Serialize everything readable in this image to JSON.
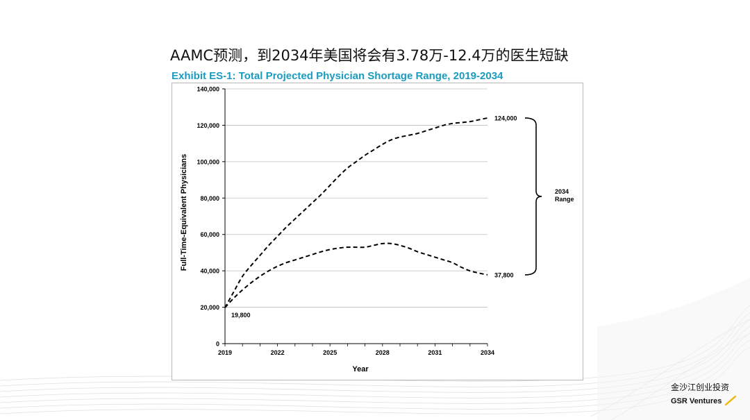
{
  "slide": {
    "title": "AAMC预测，到2034年美国将会有3.78万-12.4万的医生短缺"
  },
  "brand": {
    "name_cn": "金沙江创业投资",
    "name_en": "GSR Ventures",
    "accent_color": "#f2b705"
  },
  "chart_data": {
    "type": "line",
    "title": "Exhibit ES-1: Total Projected Physician Shortage Range, 2019-2034",
    "title_color": "#1a9bbf",
    "xlabel": "Year",
    "ylabel": "Full-Time-Equivalent Physicians",
    "xlim": [
      2019,
      2034
    ],
    "ylim": [
      0,
      140000
    ],
    "x_ticks": [
      "2019",
      "2022",
      "2025",
      "2028",
      "2031",
      "2034"
    ],
    "y_ticks": [
      "0",
      "20,000",
      "40,000",
      "60,000",
      "80,000",
      "100,000",
      "120,000",
      "140,000"
    ],
    "grid": "horizontal",
    "line_style": "dashed",
    "series": [
      {
        "x": [
          2019,
          2019.5,
          2020,
          2020.5,
          2021,
          2021.5,
          2022,
          2022.5,
          2023,
          2023.5,
          2024,
          2024.5,
          2025,
          2025.5,
          2026,
          2026.5,
          2027,
          2027.5,
          2028,
          2028.5,
          2029,
          2029.5,
          2030,
          2030.5,
          2031,
          2031.5,
          2032,
          2032.5,
          2033,
          2033.5,
          2034
        ],
        "values": [
          19800,
          28500,
          37000,
          43000,
          48500,
          54000,
          59000,
          64000,
          68500,
          73000,
          77500,
          82000,
          87000,
          92000,
          96500,
          100000,
          103500,
          106500,
          109500,
          112000,
          113500,
          114500,
          115500,
          117000,
          118500,
          120000,
          121000,
          121500,
          122000,
          123000,
          124000
        ]
      },
      {
        "x": [
          2019,
          2019.5,
          2020,
          2020.5,
          2021,
          2021.5,
          2022,
          2022.5,
          2023,
          2023.5,
          2024,
          2024.5,
          2025,
          2025.5,
          2026,
          2026.5,
          2027,
          2027.5,
          2028,
          2028.5,
          2029,
          2029.5,
          2030,
          2030.5,
          2031,
          2031.5,
          2032,
          2032.5,
          2033,
          2033.5,
          2034
        ],
        "values": [
          19800,
          25000,
          29500,
          33500,
          37000,
          40000,
          42500,
          44500,
          46000,
          47500,
          49000,
          50500,
          51700,
          52500,
          53000,
          53000,
          53000,
          54000,
          55000,
          55000,
          54000,
          52500,
          50500,
          49000,
          47500,
          46000,
          44500,
          42000,
          40000,
          38800,
          37800
        ]
      }
    ],
    "annotations": [
      {
        "text": "124,000",
        "x": 2034,
        "y": 124000
      },
      {
        "text": "37,800",
        "x": 2034,
        "y": 37800
      },
      {
        "text": "19,800",
        "x": 2019,
        "y": 19800
      }
    ],
    "range_label": [
      "2034",
      "Range"
    ]
  }
}
